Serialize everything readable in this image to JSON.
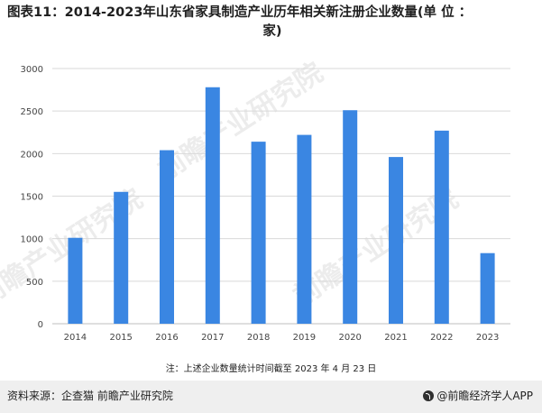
{
  "title_line1": "图表11：2014-2023年山东省家具制造产业历年相关新注册企业数量(单 位 ：",
  "title_line2": "家)",
  "note": "注：上述企业数量统计时间截至 2023 年 4 月 23 日",
  "source": "资料来源：企查猫 前瞻产业研究院",
  "brand": "@前瞻经济学人APP",
  "watermark_text": "前瞻产业研究院",
  "colors": {
    "bar": "#3a86e2",
    "grid": "#d9d9d9",
    "axis_text": "#444444"
  },
  "chart_data": {
    "type": "bar",
    "categories": [
      "2014",
      "2015",
      "2016",
      "2017",
      "2018",
      "2019",
      "2020",
      "2021",
      "2022",
      "2023"
    ],
    "values": [
      1010,
      1550,
      2040,
      2780,
      2140,
      2220,
      2510,
      1960,
      2270,
      830
    ],
    "title": "图表11：2014-2023年山东省家具制造产业历年相关新注册企业数量(单 位 ：家)",
    "xlabel": "",
    "ylabel": "",
    "ylim": [
      0,
      3000
    ],
    "yticks": [
      0,
      500,
      1000,
      1500,
      2000,
      2500,
      3000
    ],
    "grid": true,
    "legend": "none"
  }
}
